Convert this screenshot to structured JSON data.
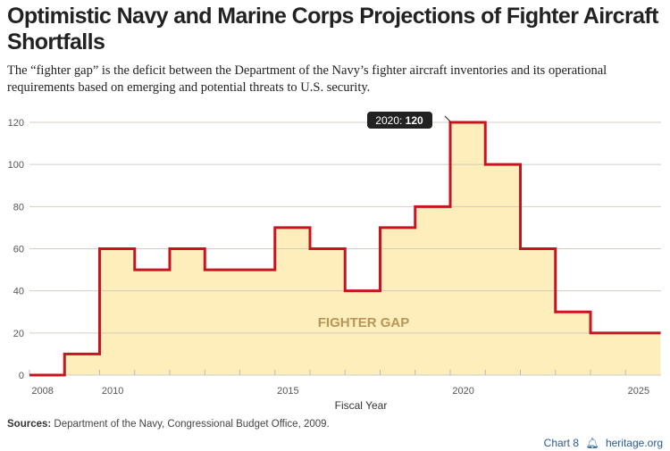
{
  "title": "Optimistic Navy and Marine Corps Projections of Fighter Aircraft Shortfalls",
  "subtitle": "The “fighter gap” is the deficit between the Department of the Navy’s fighter aircraft inventories and its operational requirements based on emerging and potential threats to U.S. security.",
  "sources_label": "Sources:",
  "sources_text": " Department of the Navy, Congressional Budget Office, 2009.",
  "footer": {
    "chart_label": "Chart 8",
    "site": "heritage.org",
    "icon": "liberty-bell-icon"
  },
  "colors": {
    "line": "#c8141e",
    "fill": "#fdeebb",
    "label": "#b8965a",
    "callout_bg": "#222222"
  },
  "chart_data": {
    "type": "area",
    "step": true,
    "title": "",
    "xlabel": "Fiscal Year",
    "ylabel": "",
    "x": [
      2008,
      2009,
      2010,
      2011,
      2012,
      2013,
      2014,
      2015,
      2016,
      2017,
      2018,
      2019,
      2020,
      2021,
      2022,
      2023,
      2024,
      2025
    ],
    "values": [
      0,
      10,
      60,
      50,
      60,
      50,
      50,
      70,
      60,
      40,
      70,
      80,
      120,
      100,
      60,
      30,
      20,
      20
    ],
    "xticks": [
      "2008",
      "2010",
      "2015",
      "2020",
      "2025"
    ],
    "yticks": [
      "0",
      "20",
      "40",
      "60",
      "80",
      "100",
      "120"
    ],
    "ylim": [
      0,
      120
    ],
    "grid": true,
    "area_label": "FIGHTER GAP",
    "callout": {
      "prefix": "2020: ",
      "value": "120"
    }
  }
}
